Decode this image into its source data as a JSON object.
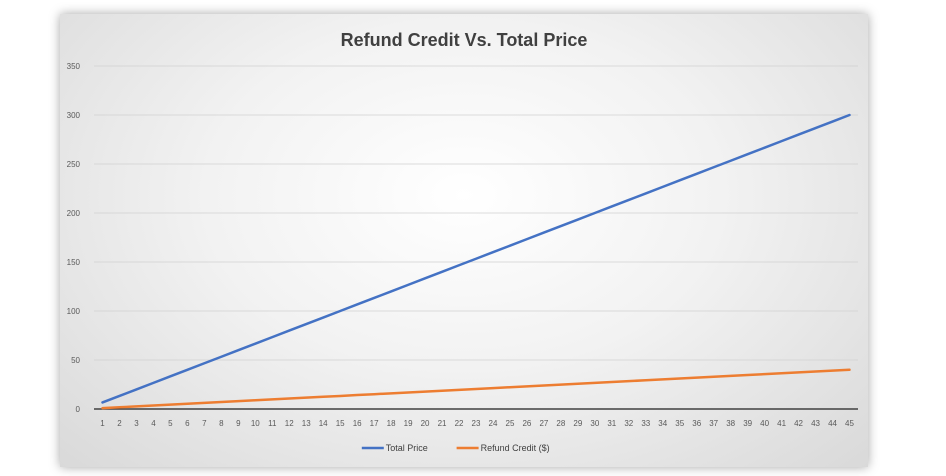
{
  "chart_data": {
    "type": "line",
    "title": "Refund Credit Vs. Total Price",
    "xlabel": "",
    "ylabel": "",
    "x": [
      1,
      2,
      3,
      4,
      5,
      6,
      7,
      8,
      9,
      10,
      11,
      12,
      13,
      14,
      15,
      16,
      17,
      18,
      19,
      20,
      21,
      22,
      23,
      24,
      25,
      26,
      27,
      28,
      29,
      30,
      31,
      32,
      33,
      34,
      35,
      36,
      37,
      38,
      39,
      40,
      41,
      42,
      43,
      44,
      45
    ],
    "ylim": [
      0,
      350
    ],
    "yticks": [
      0,
      50,
      100,
      150,
      200,
      250,
      300,
      350
    ],
    "grid": true,
    "legend_position": "bottom",
    "series": [
      {
        "name": "Total Price",
        "color": "#4472c4",
        "values": [
          6.67,
          13.33,
          20,
          26.67,
          33.33,
          40,
          46.67,
          53.33,
          60,
          66.67,
          73.33,
          80,
          86.67,
          93.33,
          100,
          106.67,
          113.33,
          120,
          126.67,
          133.33,
          140,
          146.67,
          153.33,
          160,
          166.67,
          173.33,
          180,
          186.67,
          193.33,
          200,
          206.67,
          213.33,
          220,
          226.67,
          233.33,
          240,
          246.67,
          253.33,
          260,
          266.67,
          273.33,
          280,
          286.67,
          293.33,
          300
        ]
      },
      {
        "name": "Refund Credit ($)",
        "color": "#ed7d31",
        "values": [
          0.89,
          1.78,
          2.67,
          3.56,
          4.44,
          5.33,
          6.22,
          7.11,
          8,
          8.89,
          9.78,
          10.67,
          11.56,
          12.44,
          13.33,
          14.22,
          15.11,
          16,
          16.89,
          17.78,
          18.67,
          19.56,
          20.44,
          21.33,
          22.22,
          23.11,
          24,
          24.89,
          25.78,
          26.67,
          27.56,
          28.44,
          29.33,
          30.22,
          31.11,
          32,
          32.89,
          33.78,
          34.67,
          35.56,
          36.44,
          37.33,
          38.22,
          39.11,
          40
        ]
      }
    ]
  }
}
